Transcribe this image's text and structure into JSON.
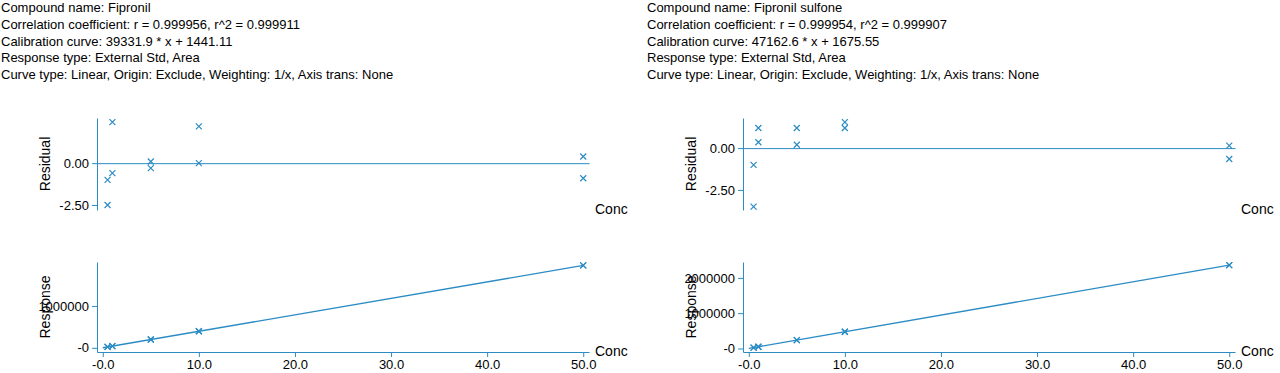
{
  "chart_data": [
    {
      "type": "scatter",
      "title": "Compound name: Fipronil",
      "annotations": [
        "Correlation coefficient: r = 0.999956, r^2 = 0.999911",
        "Calibration curve: 39331.9 * x + 1441.11",
        "Response type: External Std, Area",
        "Curve type: Linear, Origin: Exclude, Weighting: 1/x, Axis trans: None"
      ],
      "xlabel": "Conc",
      "ylabel": "Residual",
      "x": [
        0.5,
        0.5,
        1,
        1,
        5,
        5,
        10,
        10,
        50,
        50
      ],
      "values": [
        -1.0,
        -2.5,
        2.45,
        -0.6,
        0.1,
        -0.3,
        2.2,
        0.0,
        0.4,
        -0.9
      ],
      "color": "#2b8cc4",
      "marker": "x",
      "xlim": [
        -0.6,
        50.6
      ],
      "ylim": [
        -2.8,
        2.7
      ],
      "yticks": [
        {
          "value": -2.5,
          "label": "-2.50"
        },
        {
          "value": 0,
          "label": "0.00"
        }
      ],
      "tick_labels": "y"
    },
    {
      "type": "scatter",
      "xlabel": "Conc",
      "ylabel": "Response",
      "series": [
        {
          "type": "scatter",
          "marker": "x",
          "color": "#2b8cc4",
          "x": [
            0.5,
            0.5,
            1,
            1,
            5,
            5,
            10,
            10,
            50,
            50
          ],
          "values": [
            21000,
            21000,
            41000,
            41000,
            198000,
            198000,
            395000,
            395000,
            1968000,
            1968000
          ]
        },
        {
          "type": "line",
          "line_style": "solid",
          "color": "#2b8cc4",
          "x": [
            0,
            50
          ],
          "values": [
            1441.11,
            1968036
          ]
        }
      ],
      "xlim": [
        -0.6,
        50.6
      ],
      "ylim": [
        -100000,
        2050000
      ],
      "xticks": [
        {
          "value": 0,
          "label": "-0.0"
        },
        {
          "value": 10,
          "label": "10.0"
        },
        {
          "value": 20,
          "label": "20.0"
        },
        {
          "value": 30,
          "label": "30.0"
        },
        {
          "value": 40,
          "label": "40.0"
        },
        {
          "value": 50,
          "label": "50.0"
        }
      ],
      "yticks": [
        {
          "value": 0,
          "label": "-0"
        },
        1000000
      ]
    },
    {
      "type": "scatter",
      "title": "Compound name: Fipronil sulfone",
      "annotations": [
        "Correlation coefficient: r = 0.999954, r^2 = 0.999907",
        "Calibration curve: 47162.6 * x + 1675.55",
        "Response type: External Std, Area",
        "Curve type: Linear, Origin: Exclude, Weighting: 1/x, Axis trans: None"
      ],
      "xlabel": "Conc",
      "ylabel": "Residual",
      "x": [
        0.5,
        0.5,
        1,
        1,
        5,
        5,
        10,
        10,
        50,
        50
      ],
      "values": [
        -1.0,
        -3.5,
        1.2,
        0.35,
        1.2,
        0.2,
        1.55,
        1.2,
        0.15,
        -0.65
      ],
      "color": "#2b8cc4",
      "marker": "x",
      "xlim": [
        -0.6,
        50.6
      ],
      "ylim": [
        -3.7,
        1.8
      ],
      "yticks": [
        {
          "value": -2.5,
          "label": "-2.50"
        },
        {
          "value": 0,
          "label": "0.00"
        }
      ],
      "tick_labels": "y"
    },
    {
      "type": "scatter",
      "xlabel": "Conc",
      "ylabel": "Response",
      "series": [
        {
          "type": "scatter",
          "marker": "x",
          "color": "#2b8cc4",
          "x": [
            0.5,
            0.5,
            1,
            1,
            5,
            5,
            10,
            10,
            50,
            50
          ],
          "values": [
            25000,
            25000,
            49000,
            49000,
            237000,
            237000,
            473000,
            473000,
            2360000,
            2360000
          ]
        },
        {
          "type": "line",
          "line_style": "solid",
          "color": "#2b8cc4",
          "x": [
            0,
            50
          ],
          "values": [
            1675.55,
            2359806
          ]
        }
      ],
      "xlim": [
        -0.6,
        50.6
      ],
      "ylim": [
        -100000,
        2450000
      ],
      "xticks": [
        {
          "value": 0,
          "label": "-0.0"
        },
        {
          "value": 10,
          "label": "10.0"
        },
        {
          "value": 20,
          "label": "20.0"
        },
        {
          "value": 30,
          "label": "30.0"
        },
        {
          "value": 40,
          "label": "40.0"
        },
        {
          "value": 50,
          "label": "50.0"
        }
      ],
      "yticks": [
        {
          "value": 0,
          "label": "-0"
        },
        1000000,
        2000000
      ]
    }
  ]
}
